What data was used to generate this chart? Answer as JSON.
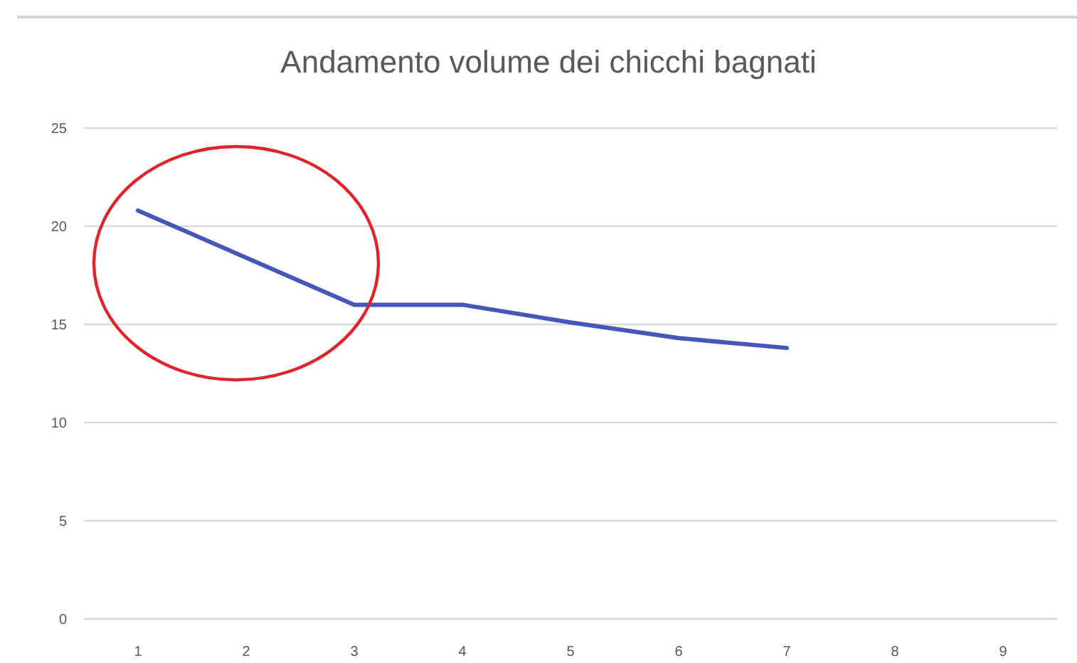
{
  "chart_data": {
    "type": "line",
    "title": "Andamento volume dei chicchi bagnati",
    "categories": [
      "1",
      "2",
      "3",
      "4",
      "5",
      "6",
      "7",
      "8",
      "9"
    ],
    "series": [
      {
        "color": "#4756b8",
        "values": [
          20.8,
          18.4,
          16,
          16,
          15.1,
          14.3,
          13.8,
          null,
          null
        ]
      }
    ],
    "ylim": [
      0,
      25
    ],
    "yticks": [
      0,
      5,
      10,
      15,
      20,
      25
    ],
    "grid": "y",
    "marker": "none",
    "line_style": "solid"
  }
}
